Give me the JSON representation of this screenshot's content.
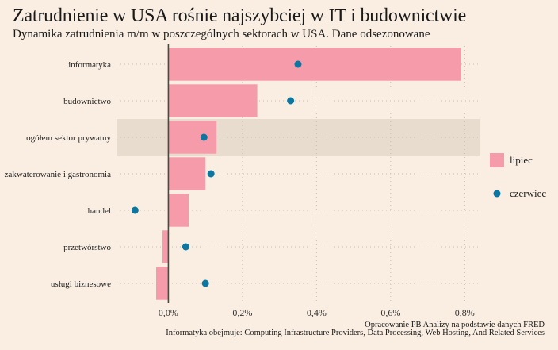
{
  "header": {
    "title": "Zatrudnienie w USA rośnie najszybciej w IT i budownictwie",
    "subtitle": "Dynamika zatrudnienia m/m w poszczególnych sektorach w USA. Dane odsezonowane"
  },
  "footer": {
    "source": "Opracowanie PB Analizy na podstawie danych FRED",
    "note": "Informatyka obejmuje: Computing Infrastructure Providers, Data Processing, Web Hosting, And Related Services"
  },
  "colors": {
    "background": "#faeee2",
    "bar": "#f59baa",
    "dot": "#0d76a0",
    "highlight": "#e8dccf",
    "axis": "#4a4a3f"
  },
  "chart_data": {
    "type": "bar",
    "orientation": "horizontal",
    "title": "Zatrudnienie w USA rośnie najszybciej w IT i budownictwie",
    "subtitle": "Dynamika zatrudnienia m/m w poszczególnych sektorach w USA. Dane odsezonowane",
    "xlabel": "",
    "ylabel": "",
    "unit": "%",
    "xlim": [
      -0.14,
      0.84
    ],
    "xticks": [
      0.0,
      0.2,
      0.4,
      0.6,
      0.8
    ],
    "xtick_labels": [
      "0,0%",
      "0,2%",
      "0,4%",
      "0,6%",
      "0,8%"
    ],
    "grid": true,
    "legend_position": "right",
    "highlighted_category": "ogółem sektor prywatny",
    "categories": [
      "informatyka",
      "budownictwo",
      "ogółem sektor prywatny",
      "zakwaterowanie i gastronomia",
      "handel",
      "przetwórstwo",
      "usługi biznesowe"
    ],
    "series": [
      {
        "name": "lipiec",
        "kind": "bar",
        "values": [
          0.79,
          0.24,
          0.13,
          0.1,
          0.055,
          -0.016,
          -0.033
        ]
      },
      {
        "name": "czerwiec",
        "kind": "dot",
        "values": [
          0.35,
          0.33,
          0.096,
          0.115,
          -0.09,
          0.047,
          0.1
        ]
      }
    ]
  }
}
